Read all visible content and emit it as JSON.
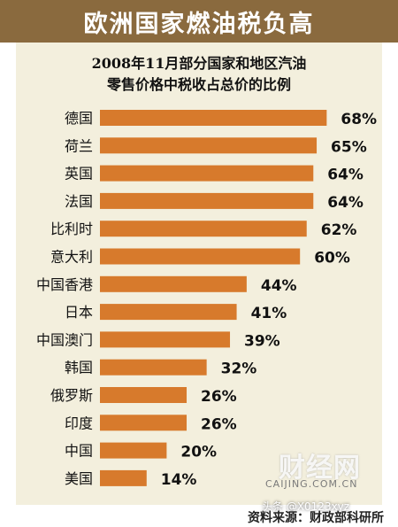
{
  "header": {
    "title": "欧洲国家燃油税负高"
  },
  "footer": {
    "source": "资料来源：财政部科研所",
    "watermark": "财经网",
    "watermark_url": "CAIJING.COM.CN",
    "overlay_tag": "头条 @X0123xyz"
  },
  "colors": {
    "bar": "#d77a2c",
    "banner": "#8a6a3e",
    "panel": "#f3efdd"
  },
  "chart_data": {
    "type": "bar",
    "orientation": "horizontal",
    "title": "2008年11月部分国家和地区汽油",
    "subtitle": "零售价格中税收占总价的比例",
    "xlim": [
      0,
      70
    ],
    "grid": false,
    "categories": [
      "德国",
      "荷兰",
      "英国",
      "法国",
      "比利时",
      "意大利",
      "中国香港",
      "日本",
      "中国澳门",
      "韩国",
      "俄罗斯",
      "印度",
      "中国",
      "美国"
    ],
    "values": [
      68,
      65,
      64,
      64,
      62,
      60,
      44,
      41,
      39,
      32,
      26,
      26,
      20,
      14
    ],
    "labels": [
      "68%",
      "65%",
      "64%",
      "64%",
      "62%",
      "60%",
      "44%",
      "41%",
      "39%",
      "32%",
      "26%",
      "26%",
      "20%",
      "14%"
    ]
  }
}
